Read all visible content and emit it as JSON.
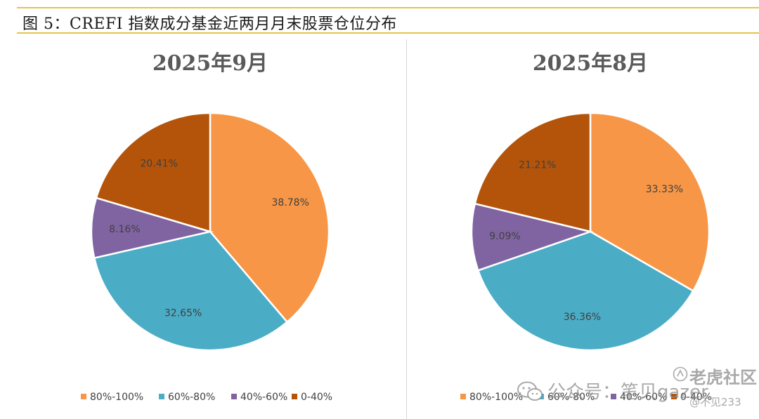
{
  "figure_title": "图  5：CREFI 指数成分基金近两月月末股票仓位分布",
  "colors": {
    "80%-100%": "#f79646",
    "60%-80%": "#4bacc6",
    "40%-60%": "#8064a2",
    "0-40%": "#b4540a"
  },
  "legend": [
    "80%-100%",
    "60%-80%",
    "40%-60%",
    "0-40%"
  ],
  "watermark": {
    "brand": "老虎社区",
    "account": "公众号：笔贝gazer",
    "user": "@不见233"
  },
  "chart_data": [
    {
      "type": "pie",
      "title": "2025年9月",
      "categories": [
        "80%-100%",
        "60%-80%",
        "40%-60%",
        "0-40%"
      ],
      "values": [
        38.78,
        32.65,
        8.16,
        20.41
      ],
      "labels": [
        "38.78%",
        "32.65%",
        "8.16%",
        "20.41%"
      ],
      "legend_position": "bottom"
    },
    {
      "type": "pie",
      "title": "2025年8月",
      "categories": [
        "80%-100%",
        "60%-80%",
        "40%-60%",
        "0-40%"
      ],
      "values": [
        33.33,
        36.36,
        9.09,
        21.21
      ],
      "labels": [
        "33.33%",
        "36.36%",
        "9.09%",
        "21.21%"
      ],
      "legend_position": "bottom"
    }
  ]
}
